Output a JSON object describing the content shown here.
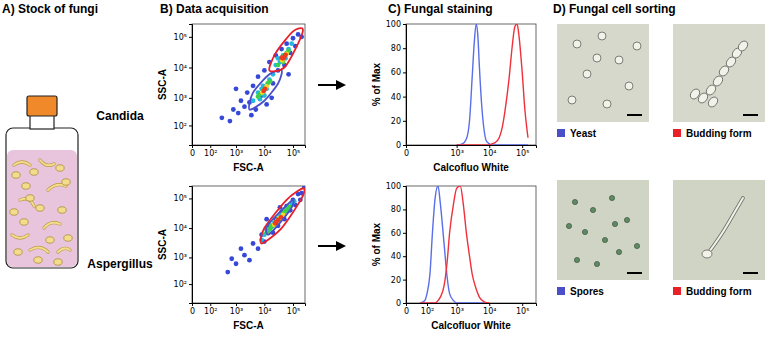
{
  "panel_titles": [
    "A) Stock of fungi",
    "B) Data acquisition",
    "C) Fungal staining",
    "D) Fungal cell sorting"
  ],
  "rows": [
    "Candida",
    "Aspergillus"
  ],
  "sorting": [
    [
      {
        "label": "Yeast",
        "color": "#4a4fc8"
      },
      {
        "label": "Budding form",
        "color": "#e8202a"
      }
    ],
    [
      {
        "label": "Spores",
        "color": "#4a4fc8"
      },
      {
        "label": "Budding form",
        "color": "#e8202a"
      }
    ]
  ],
  "chart_data": [
    {
      "type": "scatter",
      "x_label": "FSC-A",
      "y_label": "SSC-A",
      "log": true,
      "xlim": [
        0,
        262144
      ],
      "ylim": [
        0,
        262144
      ],
      "xticks": [
        0,
        {
          "value": 100,
          "label": "10²"
        },
        {
          "value": 1000,
          "label": "10³"
        },
        {
          "value": 10000,
          "label": "10⁴"
        },
        {
          "value": 100000,
          "label": "10⁵"
        }
      ],
      "yticks": [
        {
          "value": 100,
          "label": "10²"
        },
        {
          "value": 1000,
          "label": "10³"
        },
        {
          "value": 10000,
          "label": "10⁴"
        },
        {
          "value": 100000,
          "label": "10⁵"
        }
      ],
      "series": [
        {
          "color": "#3548d8",
          "x": [
            300,
            600,
            800,
            1200,
            1500,
            2000,
            2500,
            3000,
            4000,
            5000,
            6000,
            8000,
            10000,
            12000,
            15000,
            20000,
            25000,
            30000,
            40000,
            50000,
            60000,
            80000,
            100000,
            120000,
            150000,
            200000,
            1000,
            3500,
            18000,
            70000
          ],
          "values": [
            200,
            150,
            400,
            300,
            800,
            500,
            1500,
            700,
            2500,
            400,
            5000,
            1200,
            8000,
            600,
            15000,
            3000,
            25000,
            8000,
            40000,
            12000,
            60000,
            30000,
            90000,
            50000,
            120000,
            100000,
            2000,
            250,
            1000,
            6000
          ]
        },
        {
          "color": "#22b8e0",
          "x": [
            4000,
            6000,
            7000,
            9000,
            12000,
            15000,
            20000,
            25000,
            35000,
            45000,
            55000,
            70000,
            90000,
            10000,
            30000,
            8000
          ],
          "values": [
            800,
            1500,
            900,
            2500,
            2000,
            4000,
            6000,
            12000,
            15000,
            25000,
            20000,
            40000,
            60000,
            1200,
            20000,
            2000
          ]
        },
        {
          "color": "#3fcf4a",
          "x": [
            7000,
            9000,
            11000,
            13000,
            30000,
            40000,
            50000,
            60000,
            6000,
            16000,
            45000,
            70000
          ],
          "values": [
            1300,
            1800,
            2200,
            3000,
            12000,
            18000,
            25000,
            30000,
            1100,
            3500,
            15000,
            35000
          ]
        },
        {
          "color": "#f5d327",
          "x": [
            8500,
            12000,
            42000,
            60000
          ],
          "values": [
            1500,
            2400,
            17000,
            28000
          ]
        },
        {
          "color": "#ef3b1e",
          "x": [
            9500,
            10500,
            45000,
            50000,
            55000,
            40000
          ],
          "values": [
            1700,
            2000,
            20000,
            22000,
            26000,
            21000
          ]
        }
      ],
      "gates": [
        {
          "color": "#4a4fc8",
          "x": [
            3000,
            10000,
            30000,
            40000,
            15000,
            4000
          ],
          "y": [
            400,
            800,
            3000,
            8000,
            6000,
            1500
          ]
        },
        {
          "color": "#e8202a",
          "x": [
            15000,
            50000,
            150000,
            220000,
            100000,
            25000
          ],
          "y": [
            8000,
            10000,
            60000,
            180000,
            150000,
            30000
          ]
        }
      ]
    },
    {
      "type": "scatter",
      "x_label": "FSC-A",
      "y_label": "SSC-A",
      "log": true,
      "xlim": [
        0,
        262144
      ],
      "ylim": [
        0,
        262144
      ],
      "xticks": [
        0,
        {
          "value": 100,
          "label": "10²"
        },
        {
          "value": 1000,
          "label": "10³"
        },
        {
          "value": 10000,
          "label": "10⁴"
        },
        {
          "value": 100000,
          "label": "10⁵"
        }
      ],
      "yticks": [
        {
          "value": 100,
          "label": "10²"
        },
        {
          "value": 1000,
          "label": "10³"
        },
        {
          "value": 10000,
          "label": "10⁴"
        },
        {
          "value": 100000,
          "label": "10⁵"
        }
      ],
      "series": [
        {
          "color": "#3548d8",
          "x": [
            500,
            1000,
            2000,
            3000,
            4000,
            6000,
            8000,
            10000,
            15000,
            20000,
            25000,
            30000,
            40000,
            50000,
            60000,
            80000,
            100000,
            120000,
            150000,
            200000,
            250000,
            1500,
            700,
            180000,
            12000,
            35000
          ],
          "values": [
            300,
            600,
            1200,
            800,
            3000,
            2000,
            6000,
            3500,
            12000,
            7000,
            20000,
            12000,
            35000,
            20000,
            55000,
            40000,
            90000,
            60000,
            140000,
            150000,
            240000,
            2000,
            900,
            90000,
            20000,
            50000
          ]
        },
        {
          "color": "#22b8e0",
          "x": [
            8000,
            10000,
            14000,
            18000,
            22000,
            28000,
            35000,
            45000,
            55000,
            70000,
            90000,
            110000,
            12000,
            25000,
            40000,
            65000
          ],
          "values": [
            4000,
            6000,
            8000,
            11000,
            15000,
            18000,
            25000,
            30000,
            40000,
            50000,
            65000,
            80000,
            9000,
            13000,
            28000,
            38000
          ]
        },
        {
          "color": "#3fcf4a",
          "x": [
            12000,
            16000,
            20000,
            25000,
            30000,
            38000,
            48000,
            60000,
            75000,
            17000,
            32000,
            52000
          ],
          "values": [
            7000,
            9500,
            12000,
            16000,
            20000,
            24000,
            32000,
            42000,
            52000,
            12000,
            19000,
            36000
          ]
        },
        {
          "color": "#f5d327",
          "x": [
            22000,
            28000,
            35000,
            45000
          ],
          "values": [
            13000,
            17000,
            22000,
            28000
          ]
        },
        {
          "color": "#ef3b1e",
          "x": [
            24000,
            30000,
            38000,
            26000
          ],
          "values": [
            14500,
            18500,
            23000,
            16000
          ]
        }
      ],
      "gates": [
        {
          "color": "#e8202a",
          "x": [
            8000,
            40000,
            200000,
            230000,
            60000,
            10000
          ],
          "y": [
            3000,
            10000,
            100000,
            220000,
            90000,
            10000
          ]
        },
        {
          "color": "#4a4fc8",
          "x": [
            14000,
            35000,
            90000,
            100000,
            40000,
            12000
          ],
          "y": [
            6000,
            15000,
            50000,
            90000,
            40000,
            11000
          ]
        }
      ]
    },
    {
      "type": "line",
      "x_label": "Calcofluo White",
      "y_label": "% of Max",
      "log": "x",
      "xlim": [
        0,
        262144
      ],
      "ylim": [
        0,
        100
      ],
      "xticks": [
        0,
        {
          "value": 1000,
          "label": "10³"
        },
        {
          "value": 10000,
          "label": "10⁴"
        },
        {
          "value": 100000,
          "label": "10⁵"
        }
      ],
      "yticks": [
        0,
        20,
        40,
        60,
        80,
        100
      ],
      "x": [
        1000,
        1500,
        2000,
        2500,
        3000,
        3500,
        4000,
        4500,
        5000,
        6000,
        7000,
        8000,
        10000,
        12000,
        15000,
        20000,
        25000,
        30000,
        40000,
        50000,
        60000,
        70000,
        80000,
        100000,
        120000,
        150000
      ],
      "series": [
        {
          "color": "#5a6ee8",
          "values": [
            0,
            1,
            5,
            20,
            55,
            85,
            100,
            90,
            65,
            30,
            12,
            4,
            1,
            0,
            0,
            0,
            0,
            0,
            0,
            0,
            0,
            0,
            0,
            0,
            0,
            0
          ]
        },
        {
          "color": "#f0303a",
          "values": [
            0,
            0,
            0,
            0,
            0,
            0,
            0,
            0,
            0,
            0,
            0,
            0,
            0,
            1,
            2,
            6,
            15,
            28,
            55,
            82,
            98,
            100,
            90,
            60,
            30,
            6
          ]
        }
      ]
    },
    {
      "type": "line",
      "x_label": "Calcofluor White",
      "y_label": "% of Max",
      "log": "x",
      "xlim": [
        0,
        262144
      ],
      "ylim": [
        0,
        100
      ],
      "xticks": [
        0,
        {
          "value": 100,
          "label": "10²"
        },
        {
          "value": 1000,
          "label": "10³"
        },
        {
          "value": 10000,
          "label": "10⁴"
        },
        {
          "value": 100000,
          "label": "10⁵"
        }
      ],
      "yticks": [
        0,
        20,
        40,
        60,
        80,
        100
      ],
      "x": [
        50,
        80,
        100,
        130,
        160,
        200,
        250,
        300,
        400,
        500,
        600,
        800,
        1000,
        1300,
        1600,
        2000,
        2500,
        3000,
        4000,
        5000,
        7000,
        10000
      ],
      "series": [
        {
          "color": "#5a6ee8",
          "values": [
            0,
            2,
            8,
            25,
            60,
            90,
            100,
            85,
            50,
            22,
            8,
            2,
            0,
            0,
            0,
            0,
            0,
            0,
            0,
            0,
            0,
            0
          ]
        },
        {
          "color": "#f0303a",
          "values": [
            0,
            0,
            0,
            0,
            0,
            0,
            2,
            5,
            15,
            35,
            60,
            85,
            98,
            100,
            85,
            60,
            40,
            25,
            12,
            5,
            1,
            0
          ]
        }
      ]
    }
  ]
}
